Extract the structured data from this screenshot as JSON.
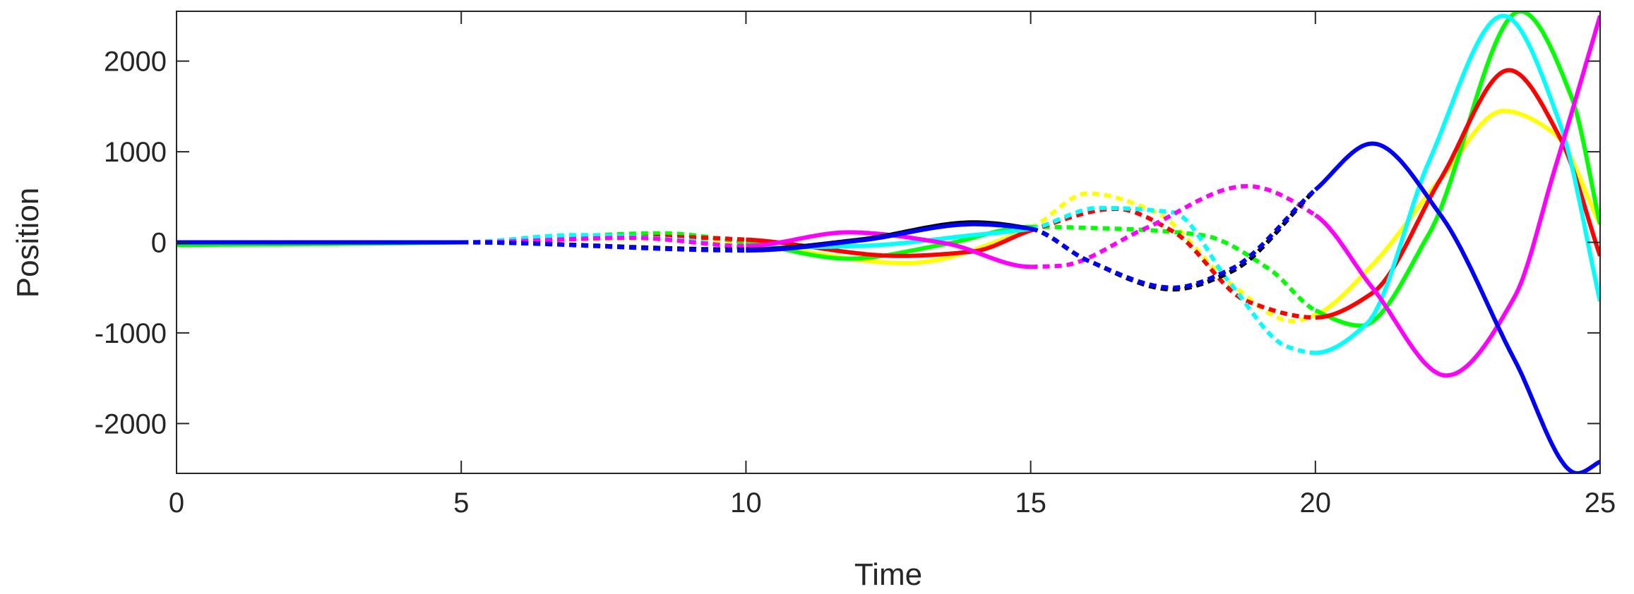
{
  "chart_data": {
    "type": "line",
    "title": "",
    "xlabel": "Time",
    "ylabel": "Position",
    "xlim": [
      0,
      25
    ],
    "ylim": [
      -2550,
      2550
    ],
    "xticks": [
      0,
      5,
      10,
      15,
      20,
      25
    ],
    "xtick_labels": [
      "0",
      "5",
      "10",
      "15",
      "20",
      "25"
    ],
    "yticks": [
      -2000,
      -1000,
      0,
      1000,
      2000
    ],
    "ytick_labels": [
      "-2000",
      "-1000",
      "0",
      "1000",
      "2000"
    ],
    "grid": false,
    "legend": "none",
    "segment_styles": [
      {
        "range": [
          0,
          5
        ],
        "style": "solid"
      },
      {
        "range": [
          5,
          10
        ],
        "style": "dashed"
      },
      {
        "range": [
          10,
          15
        ],
        "style": "solid"
      },
      {
        "range": [
          15,
          20
        ],
        "style": "dashed"
      },
      {
        "range": [
          20,
          25
        ],
        "style": "solid"
      }
    ],
    "series": [
      {
        "color": "#ffff00",
        "x": [
          0,
          5,
          8,
          10,
          12.8,
          15,
          16,
          17.2,
          18.5,
          19.6,
          20,
          21,
          22.2,
          23.3,
          24.2,
          25
        ],
        "y": [
          -20,
          0,
          40,
          -20,
          -230,
          160,
          540,
          330,
          -450,
          -870,
          -800,
          -250,
          700,
          1450,
          1200,
          200
        ]
      },
      {
        "color": "#00ff00",
        "x": [
          0,
          5,
          8.5,
          10,
          11.8,
          13.5,
          15,
          16.5,
          18,
          19.2,
          20,
          20.8,
          22,
          23.6,
          24.5,
          25
        ],
        "y": [
          -30,
          0,
          100,
          0,
          -180,
          -20,
          170,
          150,
          80,
          -300,
          -750,
          -920,
          100,
          2550,
          1600,
          200
        ]
      },
      {
        "color": "#ff0000",
        "x": [
          0,
          5,
          8.5,
          10,
          12.7,
          14,
          15,
          16.5,
          17.5,
          18.8,
          20,
          21,
          22.2,
          23.4,
          24.3,
          25
        ],
        "y": [
          0,
          0,
          60,
          30,
          -150,
          -100,
          130,
          370,
          120,
          -650,
          -830,
          -560,
          700,
          1900,
          1150,
          -150
        ]
      },
      {
        "color": "#00ffff",
        "x": [
          0,
          5,
          7,
          9,
          10,
          12,
          14,
          15,
          16.2,
          17.5,
          18.5,
          19.5,
          20,
          20.9,
          22,
          23.3,
          24.3,
          25
        ],
        "y": [
          0,
          0,
          80,
          20,
          -60,
          -40,
          80,
          150,
          380,
          330,
          -450,
          -1150,
          -1220,
          -900,
          900,
          2500,
          1300,
          -650
        ]
      },
      {
        "color": "#ff00ff",
        "x": [
          0,
          5,
          8,
          10,
          11.8,
          13.5,
          15,
          15.5,
          17,
          18.8,
          20,
          21,
          22.3,
          23.5,
          24.2,
          25
        ],
        "y": [
          0,
          0,
          50,
          -40,
          110,
          -10,
          -270,
          -260,
          150,
          620,
          300,
          -500,
          -1470,
          -600,
          800,
          2500
        ]
      },
      {
        "color": "#000000",
        "x": [
          0,
          5,
          10,
          12,
          14,
          15,
          16,
          17.5,
          18.5,
          20
        ],
        "y": [
          0,
          0,
          -80,
          30,
          220,
          150,
          -200,
          -520,
          -330,
          580
        ]
      },
      {
        "color": "#0000ff",
        "x": [
          0,
          5,
          10,
          12,
          14,
          15,
          16,
          17.5,
          18.5,
          20,
          21,
          22.2,
          23.5,
          24.6,
          25
        ],
        "y": [
          0,
          0,
          -90,
          20,
          200,
          150,
          -200,
          -500,
          -300,
          580,
          1090,
          300,
          -1300,
          -2550,
          -2420
        ]
      }
    ]
  }
}
